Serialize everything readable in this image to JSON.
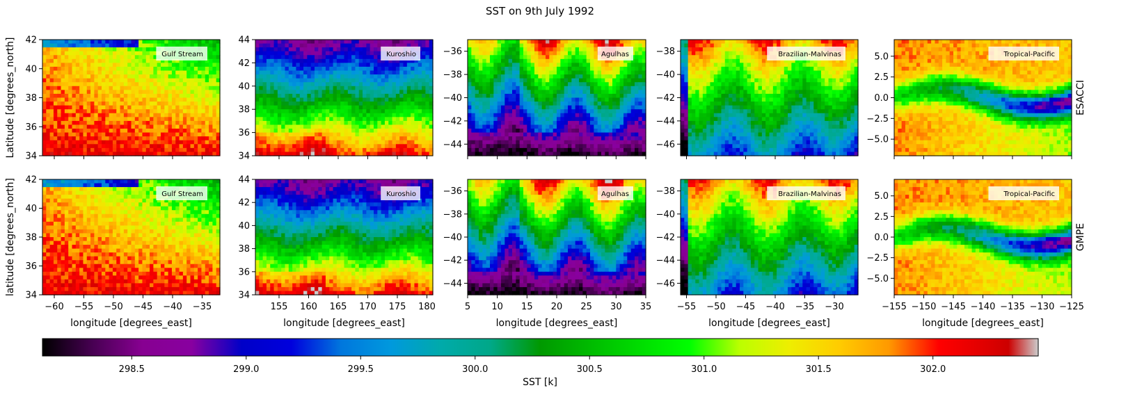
{
  "figure": {
    "title": "SST on 9th July 1992",
    "row_labels": [
      "ESACCI",
      "GMPE"
    ],
    "colormap": "nipy_spectral"
  },
  "colorbar": {
    "label": "SST [k]",
    "vmin": 298.11,
    "vmax": 302.46,
    "ticks": [
      298.5,
      299.0,
      299.5,
      300.0,
      300.5,
      301.0,
      301.5,
      302.0
    ],
    "tick_labels": [
      "298.5",
      "299.0",
      "299.5",
      "300.0",
      "300.5",
      "301.0",
      "301.5",
      "302.0"
    ]
  },
  "chart_data": [
    {
      "type": "heatmap",
      "row": 0,
      "col": 0,
      "dataset": "ESACCI",
      "region": "Gulf Stream",
      "xlim": [
        -62,
        -32
      ],
      "ylim": [
        34,
        42
      ],
      "xticks": [
        -60,
        -55,
        -50,
        -45,
        -40,
        -35
      ],
      "xtick_labels": [],
      "yticks": [
        34,
        36,
        38,
        40,
        42
      ],
      "ytick_labels": [
        "34",
        "36",
        "38",
        "40",
        "42"
      ],
      "xlabel": "",
      "ylabel": "Latitude [degrees_north]",
      "field_description": "warm (red, ~302 K) south/west, yellow-orange centre, green (~300.5 K) north/east, blue patch top-left edge"
    },
    {
      "type": "heatmap",
      "row": 0,
      "col": 1,
      "dataset": "ESACCI",
      "region": "Kuroshio",
      "xlim": [
        151,
        181
      ],
      "ylim": [
        34,
        44
      ],
      "xticks": [
        155,
        160,
        165,
        170,
        175,
        180
      ],
      "xtick_labels": [],
      "yticks": [
        34,
        36,
        38,
        40,
        42,
        44
      ],
      "ytick_labels": [
        "34",
        "36",
        "38",
        "40",
        "42",
        "44"
      ],
      "xlabel": "",
      "ylabel": "",
      "field_description": "red/orange south, yellow ~37N, green ~39-41N, cyan/blue ~42N, purple north"
    },
    {
      "type": "heatmap",
      "row": 0,
      "col": 2,
      "dataset": "ESACCI",
      "region": "Agulhas",
      "xlim": [
        5,
        35
      ],
      "ylim": [
        -45,
        -35
      ],
      "xticks": [
        5,
        10,
        15,
        20,
        25,
        30,
        35
      ],
      "xtick_labels": [],
      "yticks": [
        -44,
        -42,
        -40,
        -38,
        -36
      ],
      "ytick_labels": [
        "−44",
        "−42",
        "−40",
        "−38",
        "−36"
      ],
      "xlabel": "",
      "ylabel": "",
      "field_description": "red/orange north-east, green/yellow north-west, cyan mid, blue/purple south"
    },
    {
      "type": "heatmap",
      "row": 0,
      "col": 3,
      "dataset": "ESACCI",
      "region": "Brazilian-Malvinas",
      "xlim": [
        -56,
        -26
      ],
      "ylim": [
        -47,
        -37
      ],
      "xticks": [
        -55,
        -50,
        -45,
        -40,
        -35,
        -30
      ],
      "xtick_labels": [],
      "yticks": [
        -46,
        -44,
        -42,
        -40,
        -38
      ],
      "ytick_labels": [
        "−46",
        "−44",
        "−42",
        "−40",
        "−38"
      ],
      "xlabel": "",
      "ylabel": "",
      "field_description": "red/yellow tongue north-west, green mid, teal south, blue/purple south-east"
    },
    {
      "type": "heatmap",
      "row": 0,
      "col": 4,
      "dataset": "ESACCI",
      "region": "Tropical-Pacific",
      "xlim": [
        -155,
        -125
      ],
      "ylim": [
        -7,
        7
      ],
      "xticks": [
        -155,
        -150,
        -145,
        -140,
        -135,
        -130,
        -125
      ],
      "xtick_labels": [],
      "yticks": [
        -5.0,
        -2.5,
        0.0,
        2.5,
        5.0
      ],
      "ytick_labels": [
        "−5.0",
        "−2.5",
        "0.0",
        "2.5",
        "5.0"
      ],
      "xlabel": "",
      "ylabel": "",
      "field_description": "red/yellow north and south-west, cold tongue (cyan/blue/purple) along equator toward east, green east"
    },
    {
      "type": "heatmap",
      "row": 1,
      "col": 0,
      "dataset": "GMPE",
      "region": "Gulf Stream",
      "xlim": [
        -62,
        -32
      ],
      "ylim": [
        34,
        42
      ],
      "xticks": [
        -60,
        -55,
        -50,
        -45,
        -40,
        -35
      ],
      "xtick_labels": [
        "−60",
        "−55",
        "−50",
        "−45",
        "−40",
        "−35"
      ],
      "yticks": [
        34,
        36,
        38,
        40,
        42
      ],
      "ytick_labels": [
        "34",
        "36",
        "38",
        "40",
        "42"
      ],
      "xlabel": "longitude [degrees_east]",
      "ylabel": "latitude [degrees_north]",
      "field_description": "red south-west, yellow centre, green north-east, teal/blue strip along top-left"
    },
    {
      "type": "heatmap",
      "row": 1,
      "col": 1,
      "dataset": "GMPE",
      "region": "Kuroshio",
      "xlim": [
        151,
        181
      ],
      "ylim": [
        34,
        44
      ],
      "xticks": [
        155,
        160,
        165,
        170,
        175,
        180
      ],
      "xtick_labels": [
        "155",
        "160",
        "165",
        "170",
        "175",
        "180"
      ],
      "yticks": [
        34,
        36,
        38,
        40,
        42,
        44
      ],
      "ytick_labels": [
        "34",
        "36",
        "38",
        "40",
        "42",
        "44"
      ],
      "xlabel": "longitude [degrees_east]",
      "ylabel": "",
      "field_description": "red bottom, yellow ~36-38N, green ~39-41N, cyan ~42N, blue/purple top"
    },
    {
      "type": "heatmap",
      "row": 1,
      "col": 2,
      "dataset": "GMPE",
      "region": "Agulhas",
      "xlim": [
        5,
        35
      ],
      "ylim": [
        -45,
        -35
      ],
      "xticks": [
        5,
        10,
        15,
        20,
        25,
        30,
        35
      ],
      "xtick_labels": [
        "5",
        "10",
        "15",
        "20",
        "25",
        "30",
        "35"
      ],
      "yticks": [
        -44,
        -42,
        -40,
        -38,
        -36
      ],
      "ytick_labels": [
        "−44",
        "−42",
        "−40",
        "−38",
        "−36"
      ],
      "xlabel": "longitude [degrees_east]",
      "ylabel": "",
      "field_description": "red/orange north-centre, yellow north, green ~-40, cyan ~-42, blue/purple south"
    },
    {
      "type": "heatmap",
      "row": 1,
      "col": 3,
      "dataset": "GMPE",
      "region": "Brazilian-Malvinas",
      "xlim": [
        -56,
        -26
      ],
      "ylim": [
        -47,
        -37
      ],
      "xticks": [
        -55,
        -50,
        -45,
        -40,
        -35,
        -30
      ],
      "xtick_labels": [
        "−55",
        "−50",
        "−45",
        "−40",
        "−35",
        "−30"
      ],
      "yticks": [
        -46,
        -44,
        -42,
        -40,
        -38
      ],
      "ytick_labels": [
        "−46",
        "−44",
        "−42",
        "−40",
        "−38"
      ],
      "xlabel": "longitude [degrees_east]",
      "ylabel": "",
      "field_description": "red north, yellow ~-40, green ~-42, teal south, purple south-east corner"
    },
    {
      "type": "heatmap",
      "row": 1,
      "col": 4,
      "dataset": "GMPE",
      "region": "Tropical-Pacific",
      "xlim": [
        -155,
        -125
      ],
      "ylim": [
        -7,
        7
      ],
      "xticks": [
        -155,
        -150,
        -145,
        -140,
        -135,
        -130,
        -125
      ],
      "xtick_labels": [
        "−155",
        "−150",
        "−145",
        "−140",
        "−135",
        "−130",
        "−125"
      ],
      "yticks": [
        -5.0,
        -2.5,
        0.0,
        2.5,
        5.0
      ],
      "ytick_labels": [
        "−5.0",
        "−2.5",
        "0.0",
        "2.5",
        "5.0"
      ],
      "xlabel": "longitude [degrees_east]",
      "ylabel": "",
      "field_description": "red north-west and south-west, yellow, green band, cyan/blue/purple cold tongue toward east"
    }
  ]
}
